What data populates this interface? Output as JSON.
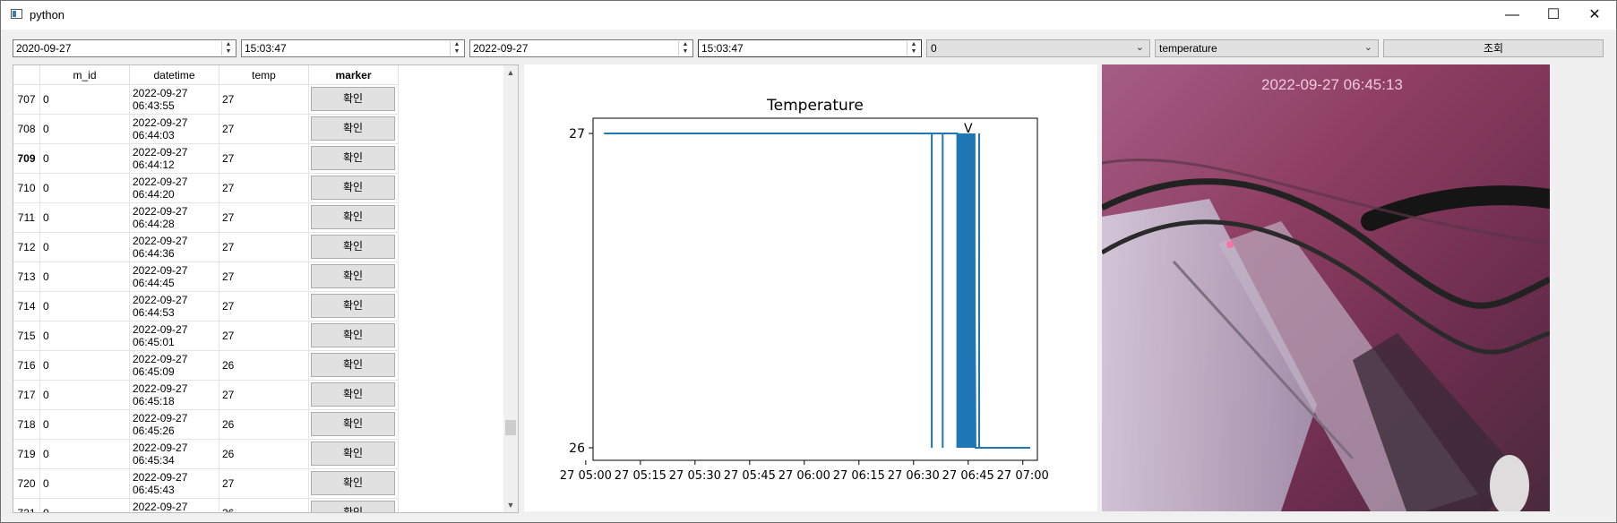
{
  "window": {
    "title": "python",
    "minimize": "—",
    "maximize": "☐",
    "close": "✕"
  },
  "filters": {
    "start_date": "2020-09-27",
    "start_time": "15:03:47",
    "end_date": "2022-09-27",
    "end_time": "15:03:47",
    "id_select": "0",
    "field_select": "temperature",
    "query_button": "조회"
  },
  "table": {
    "headers": [
      "m_id",
      "datetime",
      "temp",
      "marker"
    ],
    "rows": [
      {
        "num": "707",
        "m_id": "0",
        "date": "2022-09-27",
        "time": "06:43:55",
        "temp": "27",
        "marker": "확인"
      },
      {
        "num": "708",
        "m_id": "0",
        "date": "2022-09-27",
        "time": "06:44:03",
        "temp": "27",
        "marker": "확인"
      },
      {
        "num": "709",
        "m_id": "0",
        "date": "2022-09-27",
        "time": "06:44:12",
        "temp": "27",
        "marker": "확인"
      },
      {
        "num": "710",
        "m_id": "0",
        "date": "2022-09-27",
        "time": "06:44:20",
        "temp": "27",
        "marker": "확인"
      },
      {
        "num": "711",
        "m_id": "0",
        "date": "2022-09-27",
        "time": "06:44:28",
        "temp": "27",
        "marker": "확인"
      },
      {
        "num": "712",
        "m_id": "0",
        "date": "2022-09-27",
        "time": "06:44:36",
        "temp": "27",
        "marker": "확인"
      },
      {
        "num": "713",
        "m_id": "0",
        "date": "2022-09-27",
        "time": "06:44:45",
        "temp": "27",
        "marker": "확인"
      },
      {
        "num": "714",
        "m_id": "0",
        "date": "2022-09-27",
        "time": "06:44:53",
        "temp": "27",
        "marker": "확인"
      },
      {
        "num": "715",
        "m_id": "0",
        "date": "2022-09-27",
        "time": "06:45:01",
        "temp": "27",
        "marker": "확인"
      },
      {
        "num": "716",
        "m_id": "0",
        "date": "2022-09-27",
        "time": "06:45:09",
        "temp": "26",
        "marker": "확인"
      },
      {
        "num": "717",
        "m_id": "0",
        "date": "2022-09-27",
        "time": "06:45:18",
        "temp": "27",
        "marker": "확인"
      },
      {
        "num": "718",
        "m_id": "0",
        "date": "2022-09-27",
        "time": "06:45:26",
        "temp": "26",
        "marker": "확인"
      },
      {
        "num": "719",
        "m_id": "0",
        "date": "2022-09-27",
        "time": "06:45:34",
        "temp": "26",
        "marker": "확인"
      },
      {
        "num": "720",
        "m_id": "0",
        "date": "2022-09-27",
        "time": "06:45:43",
        "temp": "27",
        "marker": "확인"
      },
      {
        "num": "721",
        "m_id": "0",
        "date": "2022-09-27",
        "time": "",
        "temp": "26",
        "marker": "확인"
      }
    ]
  },
  "chart_data": {
    "type": "line",
    "title": "Temperature",
    "xlabel": "",
    "ylabel": "",
    "x_range": [
      "05:02",
      "07:04"
    ],
    "ylim": [
      26,
      27
    ],
    "y_ticks": [
      "26",
      "27"
    ],
    "x_ticks": [
      {
        "t": "05:00",
        "label": "27 05:00"
      },
      {
        "t": "05:15",
        "label": "27 05:15"
      },
      {
        "t": "05:30",
        "label": "27 05:30"
      },
      {
        "t": "05:45",
        "label": "27 05:45"
      },
      {
        "t": "06:00",
        "label": "27 06:00"
      },
      {
        "t": "06:15",
        "label": "27 06:15"
      },
      {
        "t": "06:30",
        "label": "27 06:30"
      },
      {
        "t": "06:45",
        "label": "27 06:45"
      },
      {
        "t": "07:00",
        "label": "27 07:00"
      }
    ],
    "annotation": "V",
    "annotation_at": "06:45:13",
    "color": "#1f77b4",
    "series": [
      {
        "points": [
          [
            "05:05",
            27
          ],
          [
            "06:35",
            27
          ],
          [
            "06:35",
            26
          ],
          [
            "06:35",
            27
          ],
          [
            "06:38",
            27
          ],
          [
            "06:38",
            26
          ],
          [
            "06:38",
            27
          ],
          [
            "06:42",
            27
          ],
          [
            "06:42",
            26
          ],
          [
            "06:42.5",
            27
          ],
          [
            "06:43",
            26
          ],
          [
            "06:43.5",
            27
          ],
          [
            "06:44",
            26
          ],
          [
            "06:44.5",
            27
          ],
          [
            "06:45",
            26
          ],
          [
            "06:45.5",
            27
          ],
          [
            "06:46",
            26
          ],
          [
            "06:46.5",
            27
          ],
          [
            "06:47",
            26
          ],
          [
            "06:48",
            26
          ],
          [
            "06:48",
            27
          ],
          [
            "06:48",
            26
          ],
          [
            "07:02",
            26
          ]
        ]
      }
    ]
  },
  "photo": {
    "timestamp": "2022-09-27 06:45:13"
  },
  "colors": {
    "accent": "#1f77b4",
    "button": "#e1e1e1"
  }
}
